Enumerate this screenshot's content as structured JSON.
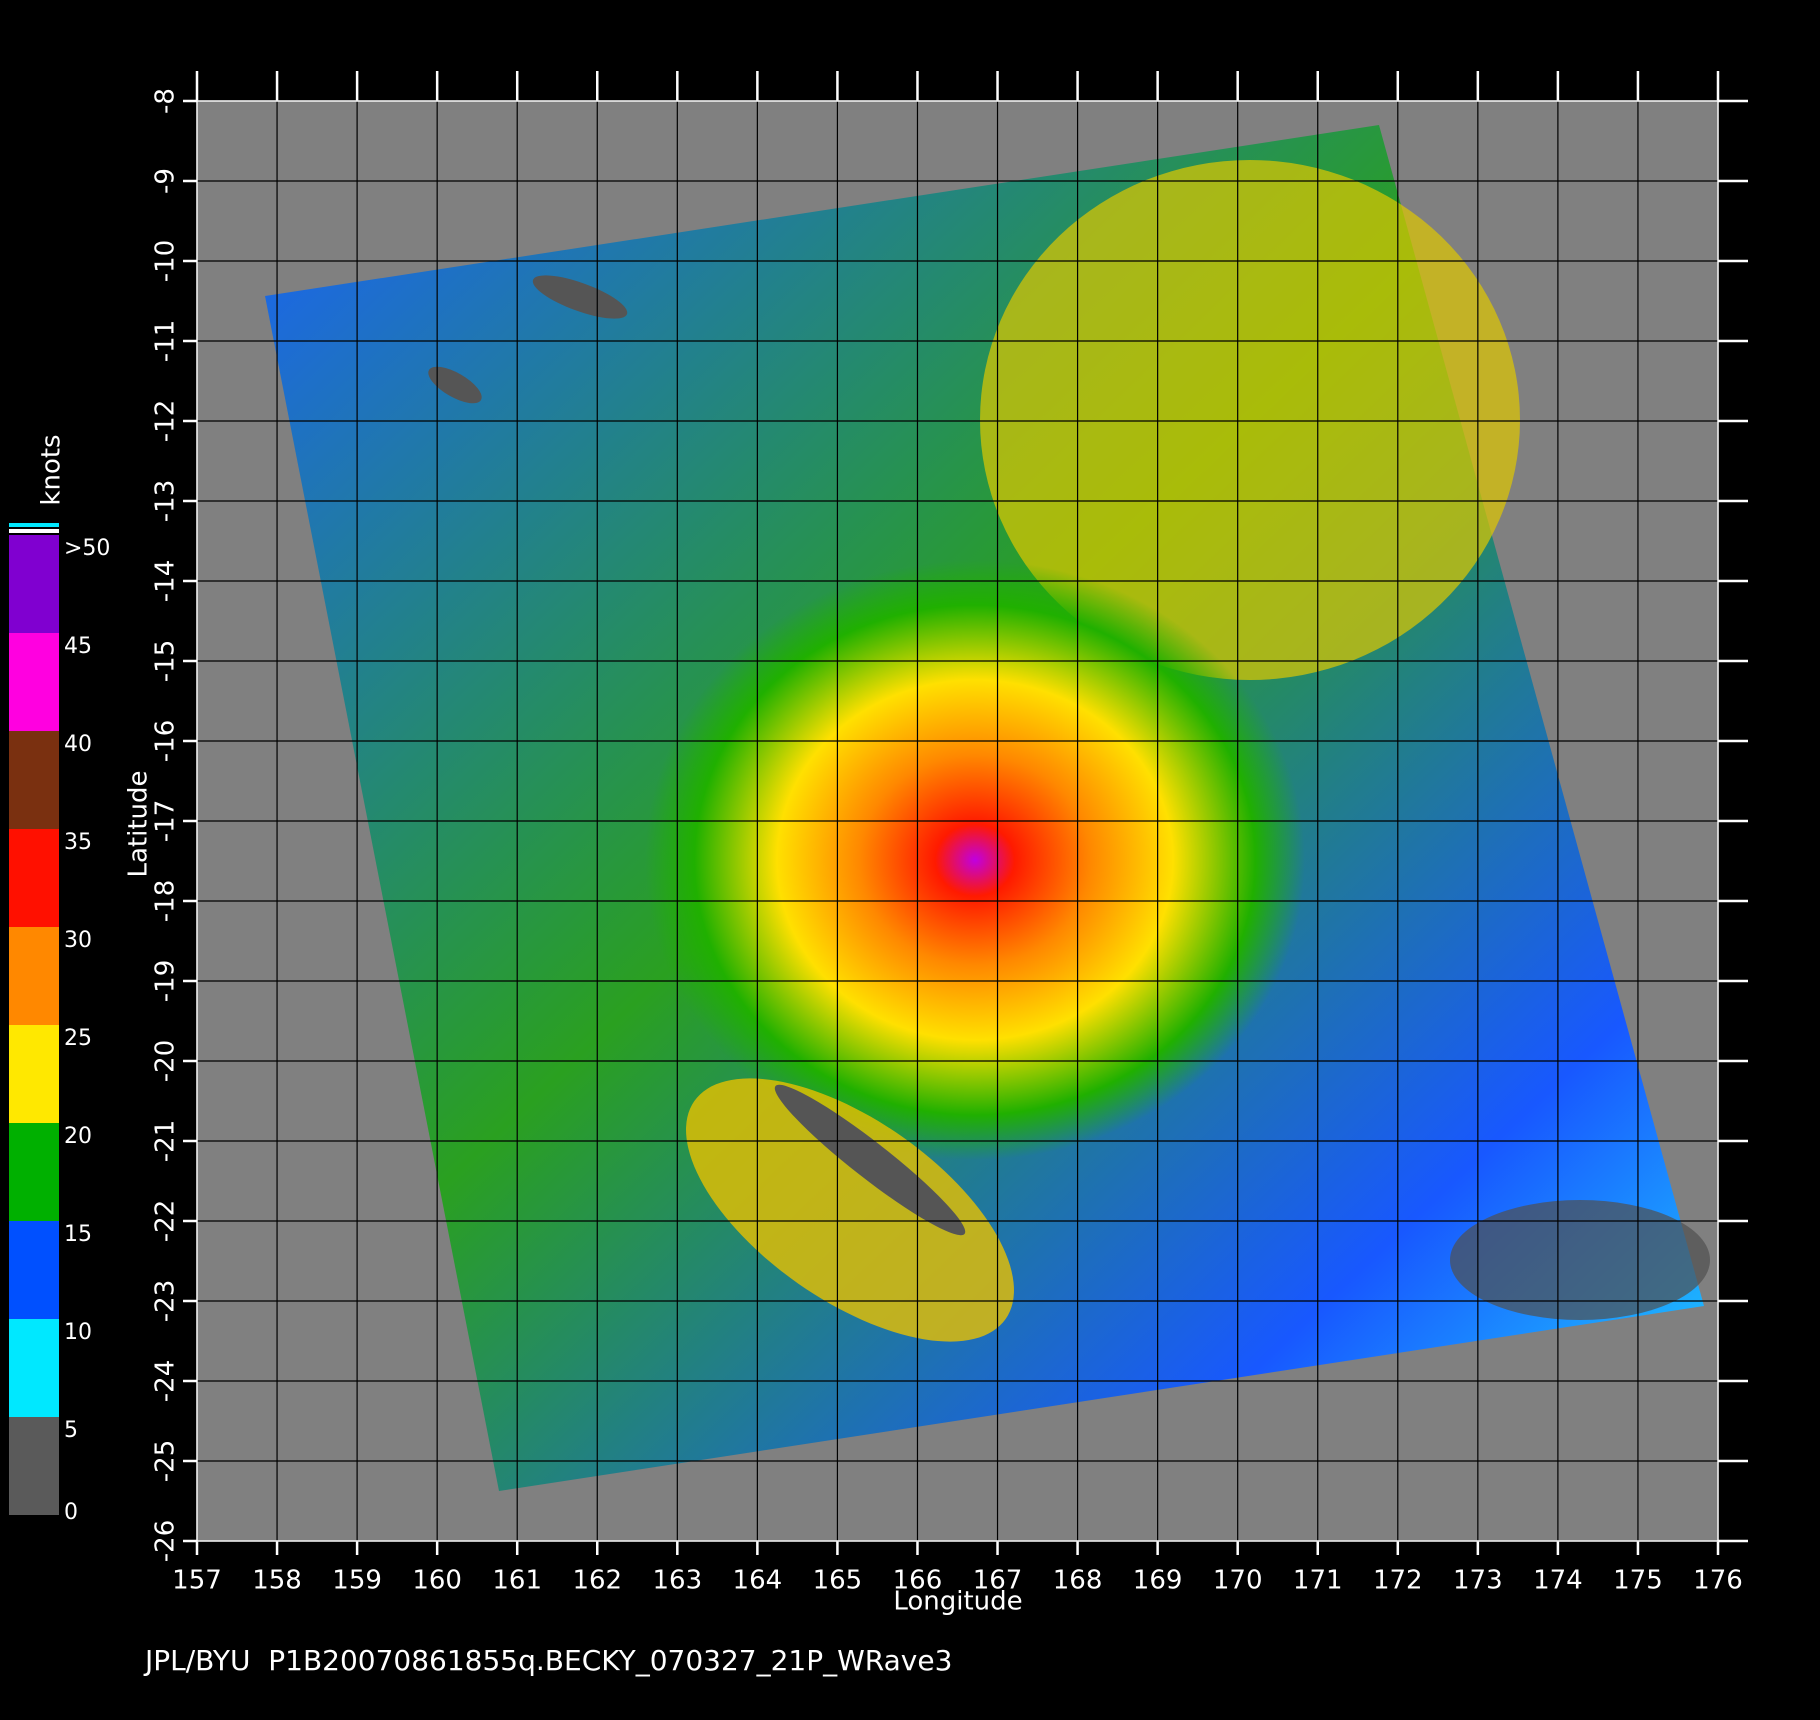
{
  "chart_data": {
    "type": "map",
    "footer": "JPL/BYU  P1B20070861855q.BECKY_070327_21P_WRave3",
    "x_label": "Longitude",
    "y_label": "Latitude",
    "xlim": [
      157,
      176
    ],
    "ylim": [
      -26,
      -8
    ],
    "xticks": [
      157,
      158,
      159,
      160,
      161,
      162,
      163,
      164,
      165,
      166,
      167,
      168,
      169,
      170,
      171,
      172,
      173,
      174,
      175,
      176
    ],
    "yticks": [
      -8,
      -9,
      -10,
      -11,
      -12,
      -13,
      -14,
      -15,
      -16,
      -17,
      -18,
      -19,
      -20,
      -21,
      -22,
      -23,
      -24,
      -25,
      -26
    ],
    "grid": true,
    "colorbar": {
      "title": "knots",
      "ticks": [
        0,
        5,
        10,
        15,
        20,
        25,
        30,
        35,
        40,
        45,
        {
          "value": 50,
          "label": ">50"
        }
      ],
      "colors": [
        "#5a5a5a",
        "#00e8ff",
        "#0050ff",
        "#00b000",
        "#ffe800",
        "#ff8800",
        "#ff1000",
        "#7a3010",
        "#ff00e0",
        "#8000d0"
      ]
    }
  }
}
